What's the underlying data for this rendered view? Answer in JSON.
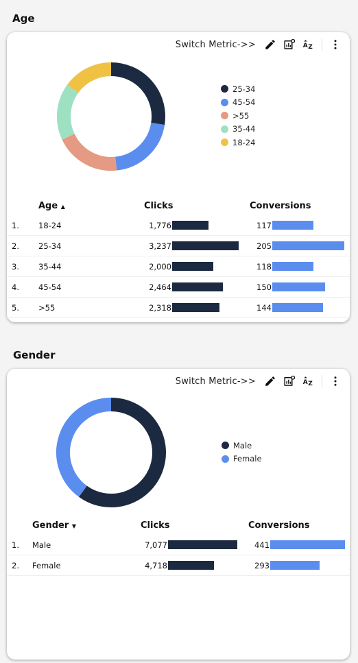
{
  "age": {
    "title": "Age",
    "toolbar": {
      "switch_label": "Switch Metric->>"
    },
    "legend": [
      {
        "label": "25-34",
        "color": "#1b2a41"
      },
      {
        "label": "45-54",
        "color": "#5b8def"
      },
      {
        "label": ">55",
        "color": "#e59a83"
      },
      {
        "label": "35-44",
        "color": "#9ee0c2"
      },
      {
        "label": "18-24",
        "color": "#f0c244"
      }
    ],
    "table": {
      "headers": {
        "dim": "Age",
        "clicks": "Clicks",
        "conversions": "Conversions"
      },
      "rows": [
        {
          "idx": "1.",
          "label": "18-24",
          "clicks": "1,776",
          "conversions": "117"
        },
        {
          "idx": "2.",
          "label": "25-34",
          "clicks": "3,237",
          "conversions": "205"
        },
        {
          "idx": "3.",
          "label": "35-44",
          "clicks": "2,000",
          "conversions": "118"
        },
        {
          "idx": "4.",
          "label": "45-54",
          "clicks": "2,464",
          "conversions": "150"
        },
        {
          "idx": "5.",
          "label": ">55",
          "clicks": "2,318",
          "conversions": "144"
        }
      ]
    }
  },
  "gender": {
    "title": "Gender",
    "toolbar": {
      "switch_label": "Switch Metric->>"
    },
    "legend": [
      {
        "label": "Male",
        "color": "#1b2a41"
      },
      {
        "label": "Female",
        "color": "#5b8def"
      }
    ],
    "table": {
      "headers": {
        "dim": "Gender",
        "clicks": "Clicks",
        "conversions": "Conversions"
      },
      "rows": [
        {
          "idx": "1.",
          "label": "Male",
          "clicks": "7,077",
          "conversions": "441"
        },
        {
          "idx": "2.",
          "label": "Female",
          "clicks": "4,718",
          "conversions": "293"
        }
      ]
    }
  },
  "chart_data": [
    {
      "type": "pie",
      "categories": [
        "25-34",
        "45-54",
        ">55",
        "35-44",
        "18-24"
      ],
      "values": [
        3237,
        2464,
        2318,
        2000,
        1776
      ],
      "colors": [
        "#1b2a41",
        "#5b8def",
        "#e59a83",
        "#9ee0c2",
        "#f0c244"
      ],
      "legend_position": "right"
    },
    {
      "type": "pie",
      "categories": [
        "Male",
        "Female"
      ],
      "values": [
        7077,
        4718
      ],
      "colors": [
        "#1b2a41",
        "#5b8def"
      ],
      "legend_position": "right"
    }
  ]
}
